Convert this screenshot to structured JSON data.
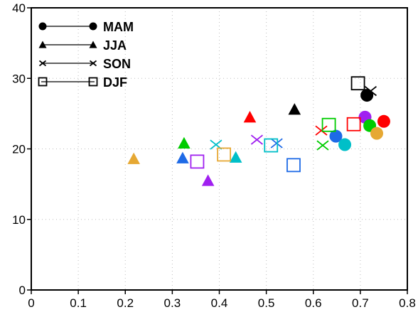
{
  "chart_data": {
    "type": "scatter",
    "title": "",
    "xlabel": "",
    "ylabel": "",
    "xlim": [
      0,
      0.8
    ],
    "ylim": [
      0,
      40
    ],
    "xticks": [
      "0",
      "0.1",
      "0.2",
      "0.3",
      "0.4",
      "0.5",
      "0.6",
      "0.7",
      "0.8"
    ],
    "yticks": [
      "0",
      "10",
      "20",
      "30",
      "40"
    ],
    "grid": "dotted",
    "legend": {
      "placement": "top-left",
      "entries": [
        {
          "label": "MAM",
          "marker": "filled-circle"
        },
        {
          "label": "JJA",
          "marker": "filled-triangle"
        },
        {
          "label": "SON",
          "marker": "x"
        },
        {
          "label": "DJF",
          "marker": "open-square"
        }
      ]
    },
    "series": [
      {
        "name": "MAM",
        "marker": "filled-circle",
        "points": [
          {
            "x": 0.714,
            "y": 27.6,
            "color": "#000000"
          },
          {
            "x": 0.71,
            "y": 24.5,
            "color": "#a020f0"
          },
          {
            "x": 0.75,
            "y": 23.9,
            "color": "#ff0000"
          },
          {
            "x": 0.72,
            "y": 23.3,
            "color": "#00cc00"
          },
          {
            "x": 0.735,
            "y": 22.2,
            "color": "#e6a833"
          },
          {
            "x": 0.648,
            "y": 21.8,
            "color": "#1e6ae6"
          },
          {
            "x": 0.667,
            "y": 20.6,
            "color": "#00bfc8"
          }
        ]
      },
      {
        "name": "JJA",
        "marker": "filled-triangle",
        "points": [
          {
            "x": 0.218,
            "y": 18.6,
            "color": "#e6a833"
          },
          {
            "x": 0.325,
            "y": 20.8,
            "color": "#00cc00"
          },
          {
            "x": 0.322,
            "y": 18.7,
            "color": "#1e6ae6"
          },
          {
            "x": 0.376,
            "y": 15.5,
            "color": "#a020f0"
          },
          {
            "x": 0.435,
            "y": 18.8,
            "color": "#00bfc8"
          },
          {
            "x": 0.465,
            "y": 24.5,
            "color": "#ff0000"
          },
          {
            "x": 0.56,
            "y": 25.6,
            "color": "#000000"
          }
        ]
      },
      {
        "name": "SON",
        "marker": "x",
        "points": [
          {
            "x": 0.393,
            "y": 20.6,
            "color": "#00bfc8"
          },
          {
            "x": 0.48,
            "y": 21.3,
            "color": "#a020f0"
          },
          {
            "x": 0.522,
            "y": 20.8,
            "color": "#1e6ae6"
          },
          {
            "x": 0.617,
            "y": 22.6,
            "color": "#ff0000"
          },
          {
            "x": 0.62,
            "y": 20.5,
            "color": "#00cc00"
          },
          {
            "x": 0.722,
            "y": 28.2,
            "color": "#000000"
          }
        ]
      },
      {
        "name": "DJF",
        "marker": "open-square",
        "points": [
          {
            "x": 0.353,
            "y": 18.2,
            "color": "#a020f0"
          },
          {
            "x": 0.41,
            "y": 19.2,
            "color": "#e6a833"
          },
          {
            "x": 0.51,
            "y": 20.5,
            "color": "#00bfc8"
          },
          {
            "x": 0.558,
            "y": 17.7,
            "color": "#1e6ae6"
          },
          {
            "x": 0.633,
            "y": 23.4,
            "color": "#00cc00"
          },
          {
            "x": 0.686,
            "y": 23.5,
            "color": "#ff0000"
          },
          {
            "x": 0.695,
            "y": 29.3,
            "color": "#000000"
          }
        ]
      }
    ]
  }
}
